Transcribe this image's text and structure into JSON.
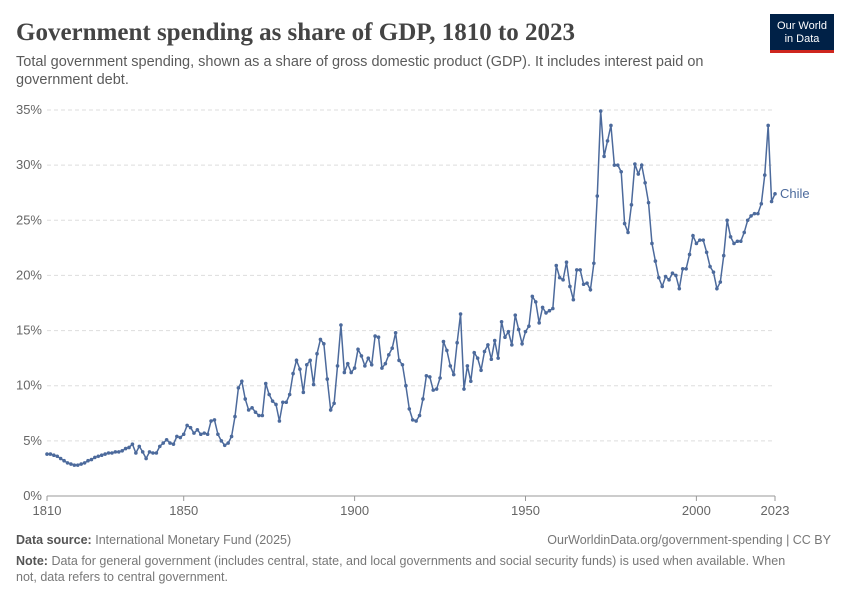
{
  "header": {
    "logo": [
      "Our World",
      "in Data"
    ]
  },
  "chart_data": {
    "type": "line",
    "title": "Government spending as share of GDP, 1810 to 2023",
    "subtitle": [
      "Total government spending, shown as a share of gross domestic product (GDP). It includes interest paid on",
      "government debt."
    ],
    "x": [
      1810,
      1811,
      1812,
      1813,
      1814,
      1815,
      1816,
      1817,
      1818,
      1819,
      1820,
      1821,
      1822,
      1823,
      1824,
      1825,
      1826,
      1827,
      1828,
      1829,
      1830,
      1831,
      1832,
      1833,
      1834,
      1835,
      1836,
      1837,
      1838,
      1839,
      1840,
      1841,
      1842,
      1843,
      1844,
      1845,
      1846,
      1847,
      1848,
      1849,
      1850,
      1851,
      1852,
      1853,
      1854,
      1855,
      1856,
      1857,
      1858,
      1859,
      1860,
      1861,
      1862,
      1863,
      1864,
      1865,
      1866,
      1867,
      1868,
      1869,
      1870,
      1871,
      1872,
      1873,
      1874,
      1875,
      1876,
      1877,
      1878,
      1879,
      1880,
      1881,
      1882,
      1883,
      1884,
      1885,
      1886,
      1887,
      1888,
      1889,
      1890,
      1891,
      1892,
      1893,
      1894,
      1895,
      1896,
      1897,
      1898,
      1899,
      1900,
      1901,
      1902,
      1903,
      1904,
      1905,
      1906,
      1907,
      1908,
      1909,
      1910,
      1911,
      1912,
      1913,
      1914,
      1915,
      1916,
      1917,
      1918,
      1919,
      1920,
      1921,
      1922,
      1923,
      1924,
      1925,
      1926,
      1927,
      1928,
      1929,
      1930,
      1931,
      1932,
      1933,
      1934,
      1935,
      1936,
      1937,
      1938,
      1939,
      1940,
      1941,
      1942,
      1943,
      1944,
      1945,
      1946,
      1947,
      1948,
      1949,
      1950,
      1951,
      1952,
      1953,
      1954,
      1955,
      1956,
      1957,
      1958,
      1959,
      1960,
      1961,
      1962,
      1963,
      1964,
      1965,
      1966,
      1967,
      1968,
      1969,
      1970,
      1971,
      1972,
      1973,
      1974,
      1975,
      1976,
      1977,
      1978,
      1979,
      1980,
      1981,
      1982,
      1983,
      1984,
      1985,
      1986,
      1987,
      1988,
      1989,
      1990,
      1991,
      1992,
      1993,
      1994,
      1995,
      1996,
      1997,
      1998,
      1999,
      2000,
      2001,
      2002,
      2003,
      2004,
      2005,
      2006,
      2007,
      2008,
      2009,
      2010,
      2011,
      2012,
      2013,
      2014,
      2015,
      2016,
      2017,
      2018,
      2019,
      2020,
      2021,
      2022,
      2023
    ],
    "series": [
      {
        "name": "Chile",
        "color": "#4c6a9c",
        "values": [
          3.8,
          3.8,
          3.7,
          3.6,
          3.4,
          3.2,
          3.0,
          2.9,
          2.8,
          2.8,
          2.9,
          3.0,
          3.2,
          3.3,
          3.5,
          3.6,
          3.7,
          3.8,
          3.9,
          3.9,
          4.0,
          4.0,
          4.1,
          4.3,
          4.4,
          4.7,
          3.9,
          4.5,
          4.0,
          3.4,
          4.0,
          3.9,
          3.9,
          4.5,
          4.8,
          5.1,
          4.8,
          4.7,
          5.4,
          5.3,
          5.6,
          6.4,
          6.2,
          5.7,
          6.0,
          5.6,
          5.7,
          5.6,
          6.8,
          6.9,
          5.6,
          5.0,
          4.6,
          4.8,
          5.4,
          7.2,
          9.8,
          10.4,
          8.8,
          7.8,
          8.0,
          7.6,
          7.3,
          7.3,
          10.2,
          9.2,
          8.6,
          8.3,
          6.8,
          8.5,
          8.5,
          9.2,
          11.1,
          12.3,
          11.5,
          9.4,
          11.9,
          12.3,
          10.1,
          12.9,
          14.2,
          13.8,
          10.6,
          7.8,
          8.4,
          11.8,
          15.5,
          11.2,
          12.0,
          11.2,
          11.6,
          13.3,
          12.7,
          11.8,
          12.5,
          11.9,
          14.5,
          14.4,
          11.6,
          12.0,
          12.8,
          13.4,
          14.8,
          12.3,
          11.9,
          10.0,
          7.9,
          6.9,
          6.8,
          7.3,
          8.8,
          10.9,
          10.8,
          9.6,
          9.7,
          10.7,
          14.0,
          13.2,
          11.8,
          11.0,
          13.9,
          16.5,
          9.7,
          11.8,
          10.4,
          13.0,
          12.5,
          11.4,
          13.1,
          13.7,
          12.4,
          14.1,
          12.5,
          15.8,
          14.4,
          14.9,
          13.7,
          16.4,
          15.1,
          13.8,
          14.9,
          15.4,
          18.1,
          17.6,
          15.7,
          17.1,
          16.6,
          16.8,
          17.0,
          20.9,
          19.8,
          19.6,
          21.2,
          19.0,
          17.8,
          20.5,
          20.5,
          19.2,
          19.3,
          18.7,
          21.1,
          27.2,
          34.9,
          30.8,
          32.2,
          33.6,
          30.0,
          30.0,
          29.4,
          24.7,
          23.9,
          26.4,
          30.1,
          29.2,
          30.0,
          28.4,
          26.6,
          22.9,
          21.3,
          19.8,
          19.0,
          19.9,
          19.6,
          20.2,
          20.0,
          18.8,
          20.6,
          20.6,
          21.9,
          23.6,
          22.9,
          23.2,
          23.2,
          22.1,
          20.8,
          20.3,
          18.8,
          19.4,
          21.8,
          25.0,
          23.5,
          22.9,
          23.1,
          23.1,
          23.9,
          25.0,
          25.4,
          25.6,
          25.6,
          26.5,
          29.1,
          33.6,
          26.7,
          27.4
        ]
      }
    ],
    "xlim": [
      1810,
      2023
    ],
    "xticks": [
      1810,
      1850,
      1900,
      1950,
      2000,
      2023
    ],
    "ylim": [
      0,
      35
    ],
    "yticks": [
      {
        "value": 0,
        "label": "0%"
      },
      {
        "value": 5,
        "label": "5%"
      },
      {
        "value": 10,
        "label": "10%"
      },
      {
        "value": 15,
        "label": "15%"
      },
      {
        "value": 20,
        "label": "20%"
      },
      {
        "value": 25,
        "label": "25%"
      },
      {
        "value": 30,
        "label": "30%"
      },
      {
        "value": 35,
        "label": "35%"
      }
    ],
    "grid": true,
    "source_label": "Data source:",
    "source": "International Monetary Fund (2025)",
    "url": "OurWorldinData.org/government-spending | CC BY",
    "note_label": "Note:",
    "note": [
      "Data for general government (includes central, state, and local governments and social security funds) is used when available. When",
      "not, data refers to central government."
    ]
  }
}
